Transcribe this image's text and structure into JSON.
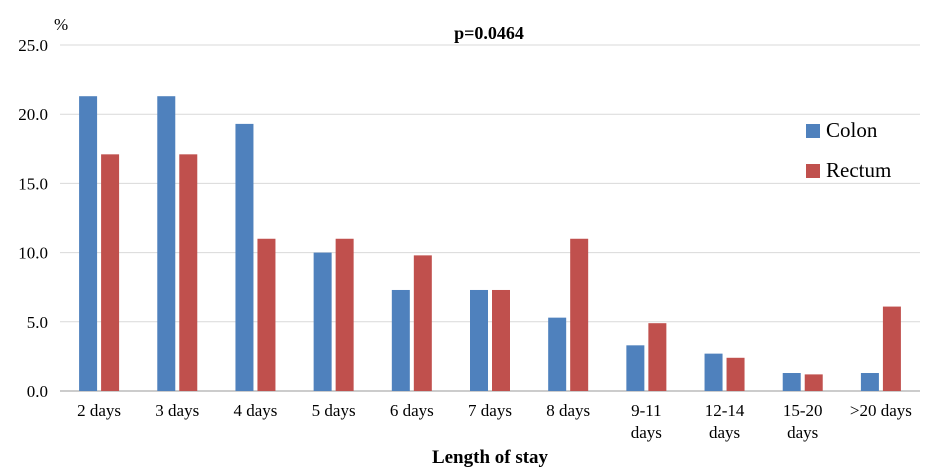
{
  "chart_data": {
    "type": "bar",
    "title": "p=0.0464",
    "ylabel": "%",
    "xlabel": "Length of stay",
    "categories": [
      [
        "2 days"
      ],
      [
        "3 days"
      ],
      [
        "4 days"
      ],
      [
        "5 days"
      ],
      [
        "6 days"
      ],
      [
        "7 days"
      ],
      [
        "8 days"
      ],
      [
        "9-11",
        "days"
      ],
      [
        "12-14",
        "days"
      ],
      [
        "15-20",
        "days"
      ],
      [
        ">20 days"
      ]
    ],
    "series": [
      {
        "name": "Colon",
        "color": "#4F81BD",
        "values": [
          21.3,
          21.3,
          19.3,
          10.0,
          7.3,
          7.3,
          5.3,
          3.3,
          2.7,
          1.3,
          1.3
        ]
      },
      {
        "name": "Rectum",
        "color": "#C0504D",
        "values": [
          17.1,
          17.1,
          11.0,
          11.0,
          9.8,
          7.3,
          11.0,
          4.9,
          2.4,
          1.2,
          6.1
        ]
      }
    ],
    "ylim": [
      0,
      25
    ],
    "yticks": [
      "0.0",
      "5.0",
      "10.0",
      "15.0",
      "20.0",
      "25.0"
    ],
    "grid": true,
    "legend": "right"
  }
}
